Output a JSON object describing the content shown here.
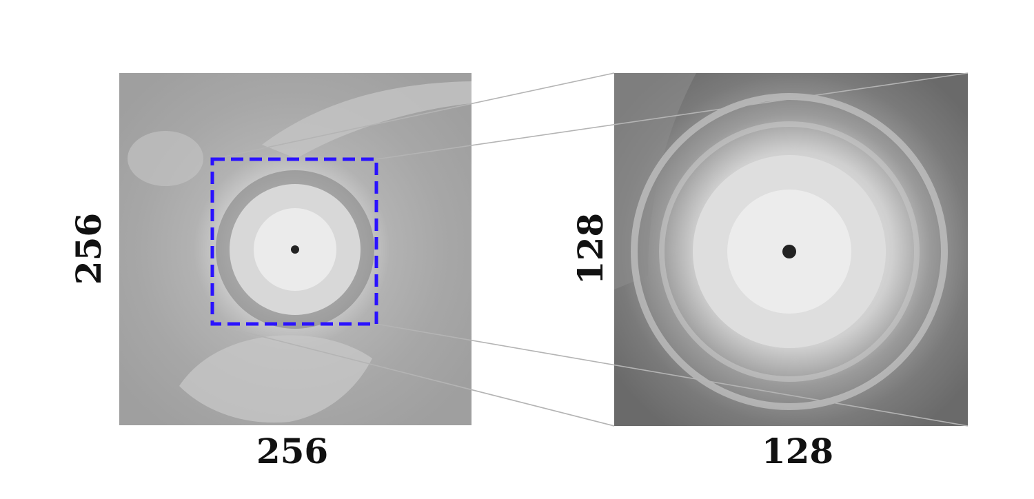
{
  "full_image": {
    "width_label": "256",
    "height_label": "256"
  },
  "crop_image": {
    "width_label": "128",
    "height_label": "128"
  },
  "colors": {
    "crop_box": "#2a12ff",
    "connector": "#b4b4b4",
    "label": "#111111"
  }
}
